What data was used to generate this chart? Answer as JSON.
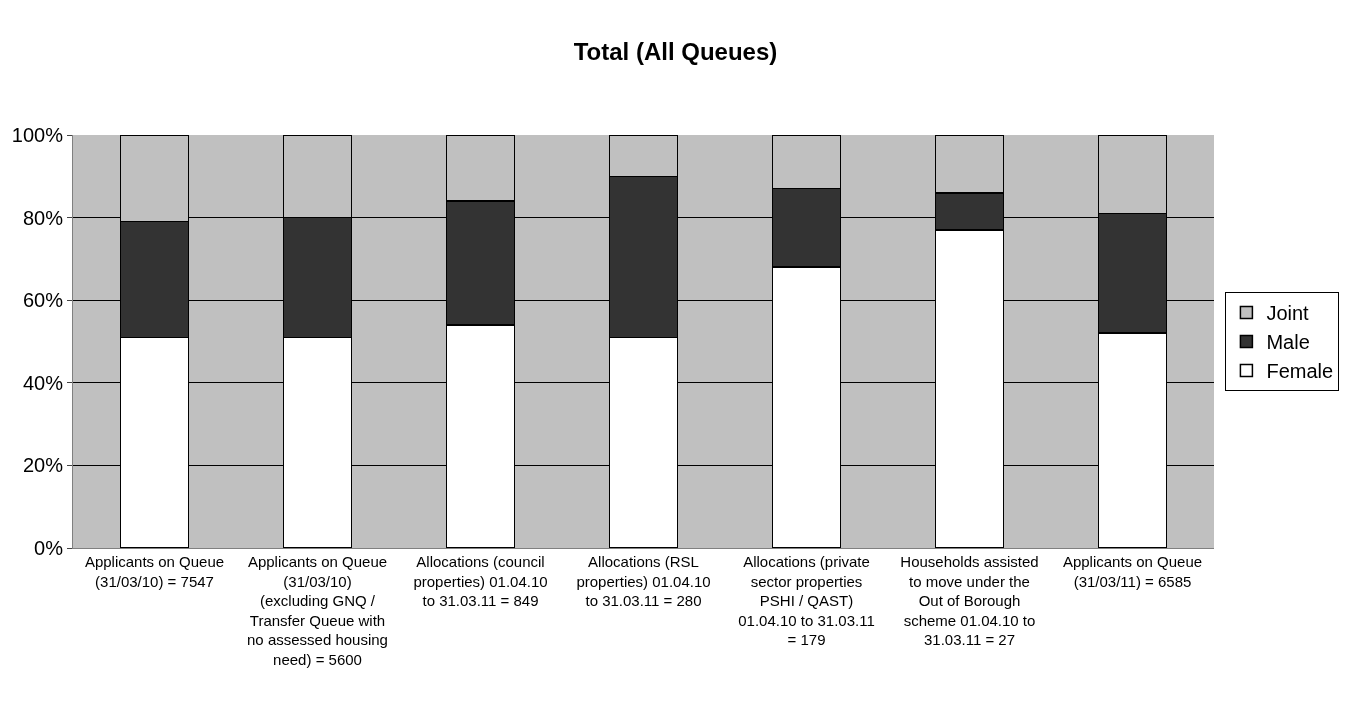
{
  "chart_data": {
    "type": "bar",
    "title": "Total (All Queues)",
    "stacked": true,
    "categories": [
      "Applicants on Queue (31/03/10) = 7547",
      "Applicants on Queue (31/03/10) (excluding GNQ / Transfer Queue with no assessed housing need) = 5600",
      "Allocations (council properties) 01.04.10 to 31.03.11 = 849",
      "Allocations (RSL properties) 01.04.10 to 31.03.11 = 280",
      "Allocations (private sector properties PSHI / QAST) 01.04.10 to 31.03.11 = 179",
      "Households assisted to move under the Out of Borough scheme 01.04.10 to 31.03.11 = 27",
      "Applicants on Queue (31/03/11) = 6585"
    ],
    "series": [
      {
        "name": "Female",
        "color": "#ffffff",
        "values": [
          51,
          51,
          54,
          51,
          68,
          77,
          52
        ]
      },
      {
        "name": "Male",
        "color": "#333333",
        "values": [
          28,
          29,
          30,
          39,
          19,
          9,
          29
        ]
      },
      {
        "name": "Joint",
        "color": "#c0c0c0",
        "values": [
          21,
          20,
          16,
          10,
          13,
          14,
          19
        ]
      }
    ],
    "ylim": [
      0,
      100
    ],
    "yticks": [
      {
        "value": 0,
        "label": "0%"
      },
      {
        "value": 20,
        "label": "20%"
      },
      {
        "value": 40,
        "label": "40%"
      },
      {
        "value": 60,
        "label": "60%"
      },
      {
        "value": 80,
        "label": "80%"
      },
      {
        "value": 100,
        "label": "100%"
      }
    ],
    "grid": "y",
    "legend": "right"
  }
}
